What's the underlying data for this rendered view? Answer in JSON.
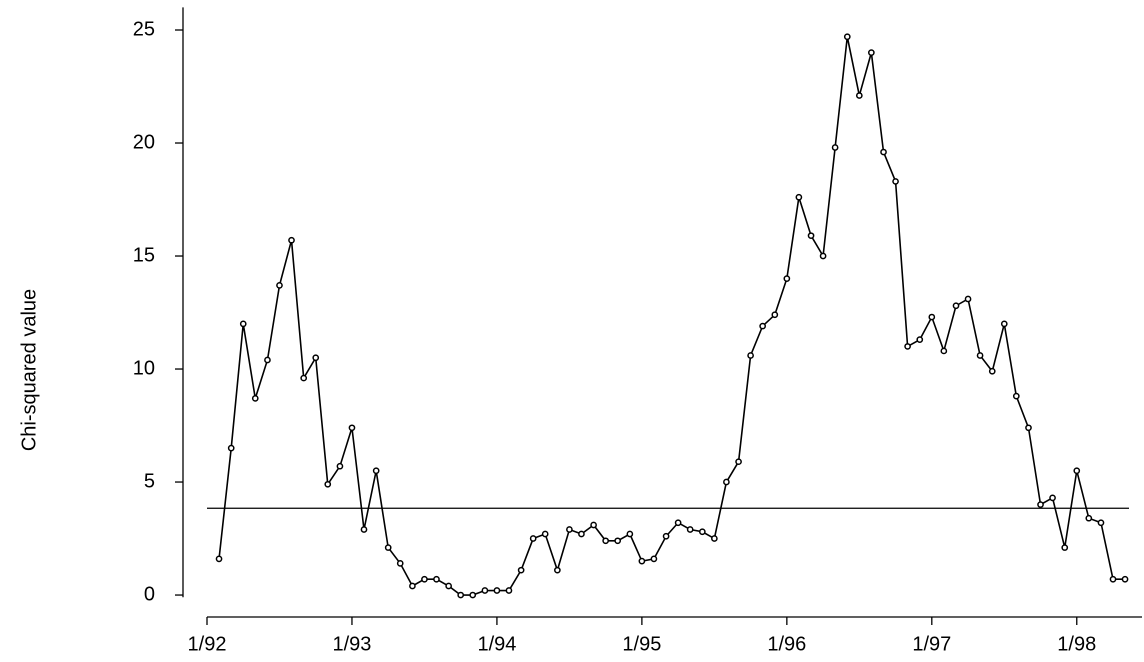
{
  "chart_data": {
    "type": "line",
    "y_label": "Chi-squared value",
    "x": [
      1992.083,
      1992.167,
      1992.25,
      1992.333,
      1992.417,
      1992.5,
      1992.583,
      1992.667,
      1992.75,
      1992.833,
      1992.917,
      1993.0,
      1993.083,
      1993.167,
      1993.25,
      1993.333,
      1993.417,
      1993.5,
      1993.583,
      1993.667,
      1993.75,
      1993.833,
      1993.917,
      1994.0,
      1994.083,
      1994.167,
      1994.25,
      1994.333,
      1994.417,
      1994.5,
      1994.583,
      1994.667,
      1994.75,
      1994.833,
      1994.917,
      1995.0,
      1995.083,
      1995.167,
      1995.25,
      1995.333,
      1995.417,
      1995.5,
      1995.583,
      1995.667,
      1995.75,
      1995.833,
      1995.917,
      1996.0,
      1996.083,
      1996.167,
      1996.25,
      1996.333,
      1996.417,
      1996.5,
      1996.583,
      1996.667,
      1996.75,
      1996.833,
      1996.917,
      1997.0,
      1997.083,
      1997.167,
      1997.25,
      1997.333,
      1997.417,
      1997.5,
      1997.583,
      1997.667,
      1997.75,
      1997.833,
      1997.917,
      1998.0,
      1998.083,
      1998.167,
      1998.25,
      1998.333
    ],
    "series": [
      {
        "color": "#000000",
        "values": [
          1.6,
          6.5,
          12.0,
          8.7,
          10.4,
          13.7,
          15.7,
          9.6,
          10.5,
          4.9,
          5.7,
          7.4,
          2.9,
          5.5,
          2.1,
          1.4,
          0.4,
          0.7,
          0.7,
          0.4,
          0.0,
          0.0,
          0.2,
          0.2,
          0.2,
          1.1,
          2.5,
          2.7,
          1.1,
          2.9,
          2.7,
          3.1,
          2.4,
          2.4,
          2.7,
          1.5,
          1.6,
          2.6,
          3.2,
          2.9,
          2.8,
          2.5,
          5.0,
          5.9,
          10.6,
          11.9,
          12.4,
          14.0,
          17.6,
          15.9,
          15.0,
          19.8,
          24.7,
          22.1,
          24.0,
          19.6,
          18.3,
          11.0,
          11.3,
          12.3,
          10.8,
          12.8,
          13.1,
          10.6,
          9.9,
          12.0,
          8.8,
          7.4,
          4.0,
          4.3,
          2.1,
          5.5,
          3.4,
          3.2,
          0.7,
          0.7
        ]
      }
    ],
    "reference_line": 3.84,
    "xlim": [
      1992,
      1998.45
    ],
    "ylim": [
      -0.1,
      26
    ],
    "xticks": [
      {
        "value": 1992,
        "label": "1/92"
      },
      {
        "value": 1993,
        "label": "1/93"
      },
      {
        "value": 1994,
        "label": "1/94"
      },
      {
        "value": 1995,
        "label": "1/95"
      },
      {
        "value": 1996,
        "label": "1/96"
      },
      {
        "value": 1997,
        "label": "1/97"
      },
      {
        "value": 1998,
        "label": "1/98"
      }
    ],
    "yticks": [
      0,
      5,
      10,
      15,
      20,
      25
    ],
    "grid": false
  }
}
